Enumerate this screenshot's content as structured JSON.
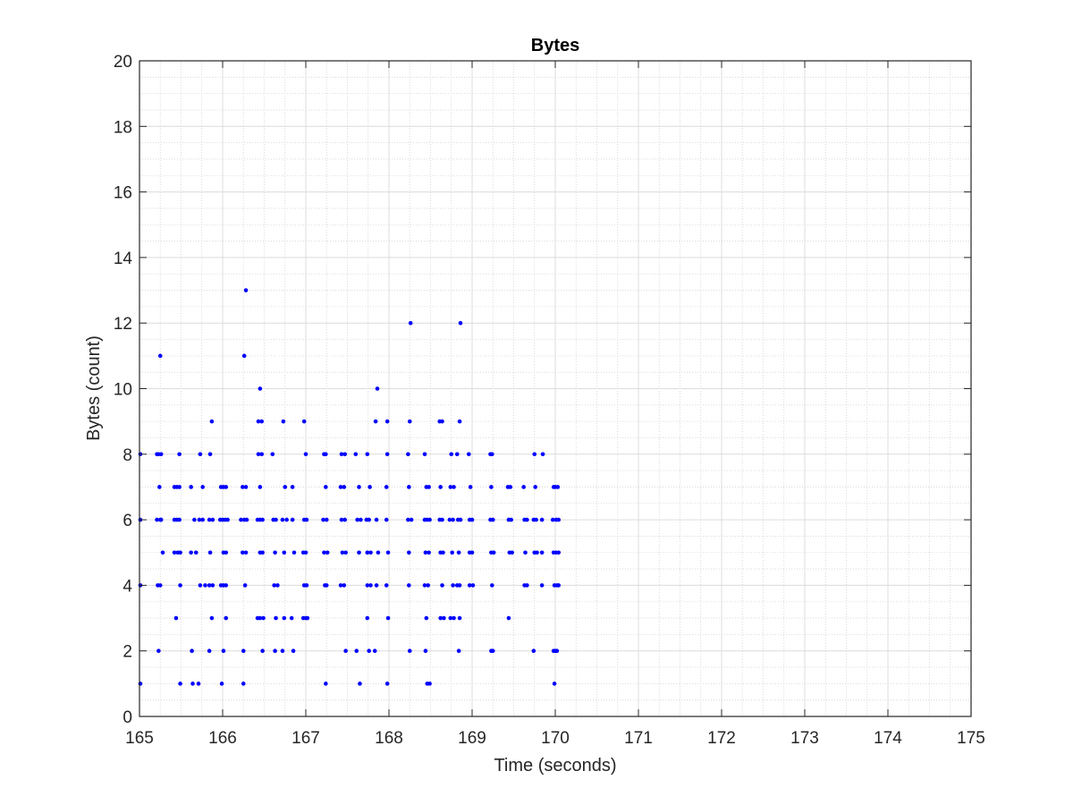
{
  "chart_data": {
    "type": "scatter",
    "title": "Bytes",
    "xlabel": "Time (seconds)",
    "ylabel": "Bytes (count)",
    "xlim": [
      165,
      175
    ],
    "ylim": [
      0,
      20
    ],
    "xticks": [
      "165",
      "166",
      "167",
      "168",
      "169",
      "170",
      "171",
      "172",
      "173",
      "174",
      "175"
    ],
    "yticks": [
      "0",
      "2",
      "4",
      "6",
      "8",
      "10",
      "12",
      "14",
      "16",
      "18",
      "20"
    ],
    "grid": "major and minor",
    "marker_color": "#0000ff",
    "series": [
      {
        "points": [
          [
            165.01,
            8
          ],
          [
            165.01,
            6
          ],
          [
            165.01,
            4
          ],
          [
            165.01,
            1
          ],
          [
            165.21,
            8
          ],
          [
            165.23,
            8
          ],
          [
            165.26,
            8
          ],
          [
            165.24,
            7
          ],
          [
            165.21,
            6
          ],
          [
            165.25,
            6
          ],
          [
            165.26,
            6
          ],
          [
            165.28,
            5
          ],
          [
            165.22,
            4
          ],
          [
            165.25,
            4
          ],
          [
            165.23,
            2
          ],
          [
            165.25,
            11
          ],
          [
            165.42,
            7
          ],
          [
            165.45,
            7
          ],
          [
            165.48,
            7
          ],
          [
            165.42,
            6
          ],
          [
            165.45,
            6
          ],
          [
            165.48,
            6
          ],
          [
            165.42,
            5
          ],
          [
            165.46,
            5
          ],
          [
            165.49,
            5
          ],
          [
            165.48,
            8
          ],
          [
            165.49,
            4
          ],
          [
            165.44,
            3
          ],
          [
            165.49,
            1
          ],
          [
            165.62,
            7
          ],
          [
            165.66,
            6
          ],
          [
            165.62,
            5
          ],
          [
            165.68,
            5
          ],
          [
            165.63,
            2
          ],
          [
            165.64,
            1
          ],
          [
            165.71,
            1
          ],
          [
            165.73,
            8
          ],
          [
            165.76,
            7
          ],
          [
            165.72,
            6
          ],
          [
            165.76,
            6
          ],
          [
            165.73,
            4
          ],
          [
            165.79,
            4
          ],
          [
            165.85,
            8
          ],
          [
            165.87,
            9
          ],
          [
            165.84,
            6
          ],
          [
            165.88,
            6
          ],
          [
            165.85,
            5
          ],
          [
            165.84,
            4
          ],
          [
            165.88,
            4
          ],
          [
            165.87,
            3
          ],
          [
            165.84,
            2
          ],
          [
            165.98,
            7
          ],
          [
            166.01,
            7
          ],
          [
            166.04,
            7
          ],
          [
            165.97,
            6
          ],
          [
            166.0,
            6
          ],
          [
            166.03,
            6
          ],
          [
            166.06,
            6
          ],
          [
            166.01,
            5
          ],
          [
            166.04,
            5
          ],
          [
            165.98,
            4
          ],
          [
            166.01,
            4
          ],
          [
            166.04,
            4
          ],
          [
            166.04,
            3
          ],
          [
            166.01,
            2
          ],
          [
            165.99,
            1
          ],
          [
            166.24,
            7
          ],
          [
            166.28,
            7
          ],
          [
            166.22,
            6
          ],
          [
            166.26,
            6
          ],
          [
            166.29,
            6
          ],
          [
            166.24,
            5
          ],
          [
            166.28,
            5
          ],
          [
            166.27,
            4
          ],
          [
            166.25,
            2
          ],
          [
            166.25,
            1
          ],
          [
            166.26,
            11
          ],
          [
            166.28,
            13
          ],
          [
            166.43,
            9
          ],
          [
            166.47,
            9
          ],
          [
            166.43,
            8
          ],
          [
            166.47,
            8
          ],
          [
            166.45,
            7
          ],
          [
            166.42,
            6
          ],
          [
            166.45,
            6
          ],
          [
            166.48,
            6
          ],
          [
            166.45,
            5
          ],
          [
            166.48,
            5
          ],
          [
            166.42,
            3
          ],
          [
            166.45,
            3
          ],
          [
            166.49,
            3
          ],
          [
            166.48,
            2
          ],
          [
            166.45,
            10
          ],
          [
            166.6,
            8
          ],
          [
            166.61,
            6
          ],
          [
            166.64,
            6
          ],
          [
            166.63,
            5
          ],
          [
            166.62,
            4
          ],
          [
            166.66,
            4
          ],
          [
            166.64,
            3
          ],
          [
            166.63,
            2
          ],
          [
            166.73,
            9
          ],
          [
            166.75,
            7
          ],
          [
            166.72,
            6
          ],
          [
            166.77,
            6
          ],
          [
            166.74,
            5
          ],
          [
            166.74,
            3
          ],
          [
            166.72,
            2
          ],
          [
            166.84,
            7
          ],
          [
            166.84,
            6
          ],
          [
            166.86,
            5
          ],
          [
            166.83,
            3
          ],
          [
            166.85,
            2
          ],
          [
            166.98,
            9
          ],
          [
            167.0,
            8
          ],
          [
            166.98,
            6
          ],
          [
            167.01,
            6
          ],
          [
            166.97,
            5
          ],
          [
            167.0,
            5
          ],
          [
            166.98,
            4
          ],
          [
            167.01,
            4
          ],
          [
            166.97,
            3
          ],
          [
            167.0,
            3
          ],
          [
            167.02,
            3
          ],
          [
            167.22,
            8
          ],
          [
            167.24,
            8
          ],
          [
            167.24,
            7
          ],
          [
            167.21,
            6
          ],
          [
            167.25,
            6
          ],
          [
            167.22,
            5
          ],
          [
            167.26,
            5
          ],
          [
            167.23,
            4
          ],
          [
            167.25,
            4
          ],
          [
            167.24,
            1
          ],
          [
            167.43,
            8
          ],
          [
            167.47,
            8
          ],
          [
            167.42,
            7
          ],
          [
            167.46,
            7
          ],
          [
            167.43,
            6
          ],
          [
            167.47,
            6
          ],
          [
            167.44,
            5
          ],
          [
            167.48,
            5
          ],
          [
            167.42,
            4
          ],
          [
            167.46,
            4
          ],
          [
            167.48,
            2
          ],
          [
            167.6,
            8
          ],
          [
            167.64,
            7
          ],
          [
            167.62,
            6
          ],
          [
            167.66,
            6
          ],
          [
            167.64,
            5
          ],
          [
            167.61,
            2
          ],
          [
            167.65,
            1
          ],
          [
            167.74,
            8
          ],
          [
            167.77,
            7
          ],
          [
            167.73,
            6
          ],
          [
            167.76,
            6
          ],
          [
            167.74,
            5
          ],
          [
            167.78,
            5
          ],
          [
            167.74,
            4
          ],
          [
            167.78,
            4
          ],
          [
            167.74,
            3
          ],
          [
            167.76,
            2
          ],
          [
            167.84,
            9
          ],
          [
            167.85,
            6
          ],
          [
            167.87,
            5
          ],
          [
            167.85,
            4
          ],
          [
            167.83,
            2
          ],
          [
            167.86,
            10
          ],
          [
            167.98,
            9
          ],
          [
            167.98,
            8
          ],
          [
            167.97,
            7
          ],
          [
            167.97,
            6
          ],
          [
            167.99,
            5
          ],
          [
            167.97,
            4
          ],
          [
            167.99,
            3
          ],
          [
            167.98,
            1
          ],
          [
            168.23,
            8
          ],
          [
            168.24,
            7
          ],
          [
            168.23,
            6
          ],
          [
            168.27,
            6
          ],
          [
            168.24,
            5
          ],
          [
            168.24,
            4
          ],
          [
            168.25,
            2
          ],
          [
            168.25,
            9
          ],
          [
            168.26,
            12
          ],
          [
            168.43,
            8
          ],
          [
            168.45,
            7
          ],
          [
            168.48,
            7
          ],
          [
            168.43,
            6
          ],
          [
            168.46,
            6
          ],
          [
            168.49,
            6
          ],
          [
            168.44,
            5
          ],
          [
            168.48,
            5
          ],
          [
            168.43,
            4
          ],
          [
            168.47,
            4
          ],
          [
            168.45,
            3
          ],
          [
            168.44,
            2
          ],
          [
            168.46,
            1
          ],
          [
            168.49,
            1
          ],
          [
            168.61,
            9
          ],
          [
            168.64,
            9
          ],
          [
            168.62,
            7
          ],
          [
            168.61,
            6
          ],
          [
            168.64,
            6
          ],
          [
            168.62,
            5
          ],
          [
            168.65,
            5
          ],
          [
            168.64,
            4
          ],
          [
            168.62,
            3
          ],
          [
            168.66,
            3
          ],
          [
            168.75,
            8
          ],
          [
            168.74,
            7
          ],
          [
            168.78,
            7
          ],
          [
            168.73,
            6
          ],
          [
            168.77,
            6
          ],
          [
            168.76,
            5
          ],
          [
            168.77,
            4
          ],
          [
            168.74,
            3
          ],
          [
            168.78,
            3
          ],
          [
            168.82,
            8
          ],
          [
            168.85,
            9
          ],
          [
            168.83,
            6
          ],
          [
            168.86,
            6
          ],
          [
            168.84,
            5
          ],
          [
            168.82,
            4
          ],
          [
            168.85,
            4
          ],
          [
            168.85,
            3
          ],
          [
            168.84,
            2
          ],
          [
            168.86,
            12
          ],
          [
            168.96,
            8
          ],
          [
            168.98,
            7
          ],
          [
            168.97,
            6
          ],
          [
            169.0,
            6
          ],
          [
            168.97,
            5
          ],
          [
            169.0,
            5
          ],
          [
            168.97,
            4
          ],
          [
            169.01,
            4
          ],
          [
            169.22,
            8
          ],
          [
            169.24,
            8
          ],
          [
            169.23,
            7
          ],
          [
            169.22,
            6
          ],
          [
            169.25,
            6
          ],
          [
            169.23,
            5
          ],
          [
            169.26,
            5
          ],
          [
            169.24,
            4
          ],
          [
            169.23,
            2
          ],
          [
            169.25,
            2
          ],
          [
            169.43,
            7
          ],
          [
            169.46,
            7
          ],
          [
            169.44,
            6
          ],
          [
            169.47,
            6
          ],
          [
            169.45,
            5
          ],
          [
            169.48,
            5
          ],
          [
            169.44,
            3
          ],
          [
            169.62,
            7
          ],
          [
            169.63,
            6
          ],
          [
            169.66,
            6
          ],
          [
            169.64,
            5
          ],
          [
            169.63,
            4
          ],
          [
            169.66,
            4
          ],
          [
            169.75,
            8
          ],
          [
            169.76,
            7
          ],
          [
            169.74,
            6
          ],
          [
            169.77,
            6
          ],
          [
            169.75,
            5
          ],
          [
            169.78,
            5
          ],
          [
            169.74,
            2
          ],
          [
            169.85,
            8
          ],
          [
            169.84,
            6
          ],
          [
            169.84,
            5
          ],
          [
            169.84,
            4
          ],
          [
            169.98,
            7
          ],
          [
            170.0,
            7
          ],
          [
            170.03,
            7
          ],
          [
            169.97,
            6
          ],
          [
            170.01,
            6
          ],
          [
            170.04,
            6
          ],
          [
            169.98,
            5
          ],
          [
            170.01,
            5
          ],
          [
            170.04,
            5
          ],
          [
            169.99,
            4
          ],
          [
            170.02,
            4
          ],
          [
            170.04,
            4
          ],
          [
            169.98,
            2
          ],
          [
            170.0,
            2
          ],
          [
            170.02,
            2
          ],
          [
            169.99,
            1
          ]
        ]
      }
    ]
  }
}
